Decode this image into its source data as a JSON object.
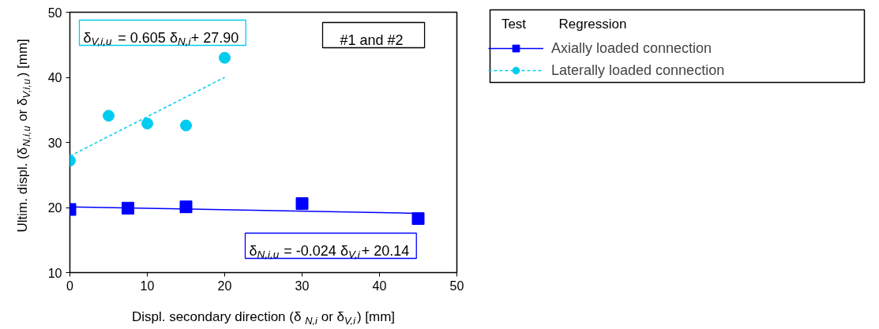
{
  "chart_data": {
    "type": "scatter",
    "xlabel": "Displ. secondary direction (δ$_{N,i}$ or δ$_{V,i}$) [mm]",
    "ylabel": "Ultim. displ. (δ$_{N,i,u}$ or δ$_{V,i,u}$) [mm]",
    "xlim": [
      0,
      50
    ],
    "ylim": [
      10,
      50
    ],
    "xticks": [
      0,
      10,
      20,
      30,
      40,
      50
    ],
    "yticks": [
      10,
      20,
      30,
      40,
      50
    ],
    "grid": false,
    "legend": "right",
    "annotations": [
      "δ$_{V,i,u}$ = 0.605 δ$_{N,i}$+ 27.90",
      "δ$_{N,i,u}$ = -0.024 δ$_{V,i}$+ 20.14",
      "#1 and #2",
      "Test",
      "Regression"
    ],
    "series": [
      {
        "name": "Axially loaded connection",
        "marker": "square",
        "color": "#0000ff",
        "x": [
          0,
          7.5,
          15,
          30,
          45
        ],
        "values": [
          19.7,
          19.9,
          20.1,
          20.6,
          18.3
        ]
      },
      {
        "name": "Laterally loaded connection",
        "marker": "circle",
        "color": "#00ccf0",
        "x": [
          0,
          5,
          10,
          15,
          20
        ],
        "values": [
          27.2,
          34.1,
          32.9,
          32.6,
          43.0
        ]
      },
      {
        "type": "line",
        "line_style": "solid",
        "color": "#0000ff",
        "x": [
          0,
          45
        ],
        "values": [
          20.1,
          19.1
        ]
      },
      {
        "type": "line",
        "line_style": "dashed",
        "color": "#00ccf0",
        "x": [
          0,
          20
        ],
        "values": [
          27.9,
          40.0
        ]
      }
    ]
  }
}
